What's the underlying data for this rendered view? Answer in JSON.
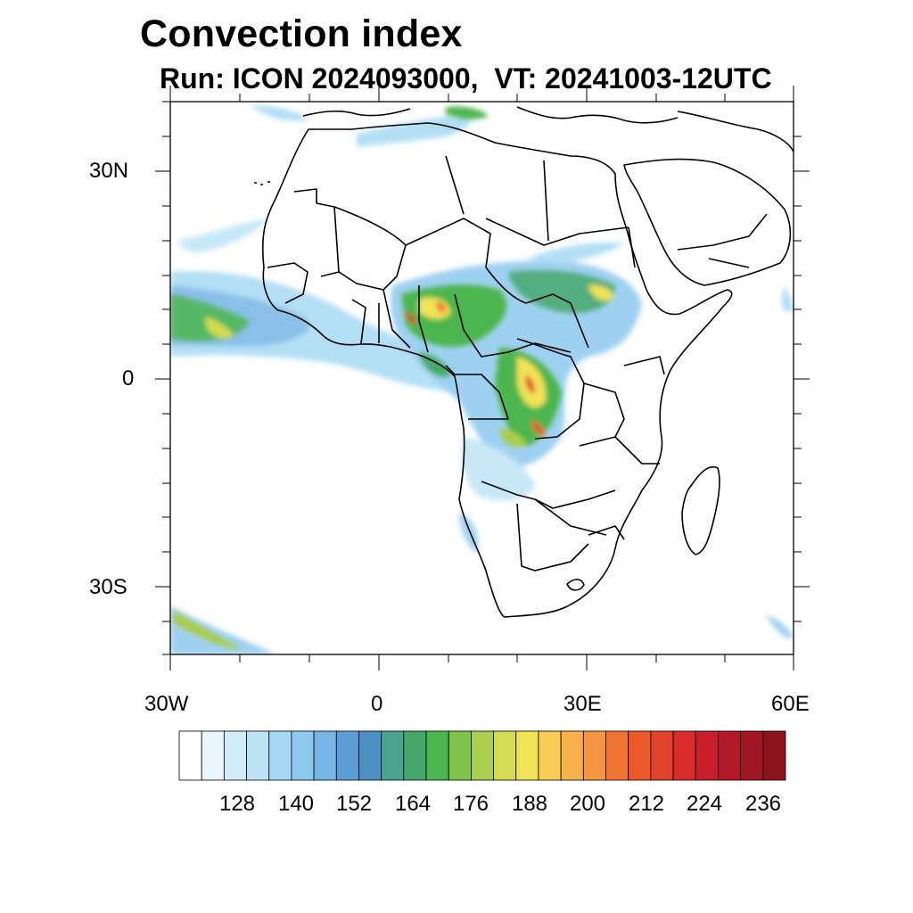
{
  "title": "Convection index",
  "subtitle": "Run: ICON 2024093000,  VT: 20241003-12UTC",
  "axes": {
    "lat_labels": [
      "30N",
      "0",
      "30S"
    ],
    "lon_labels": [
      "30W",
      "0",
      "30E",
      "60E"
    ]
  },
  "colorbar": {
    "labels": [
      "128",
      "140",
      "152",
      "164",
      "176",
      "188",
      "200",
      "212",
      "224",
      "236"
    ],
    "colors": [
      "#ffffff",
      "#eaf6fd",
      "#d3ecf9",
      "#bde4f6",
      "#a6daf4",
      "#8ec9ef",
      "#76b5e5",
      "#5c9fd6",
      "#4c90c4",
      "#49a38f",
      "#45a86a",
      "#4cb64e",
      "#7ec14a",
      "#a9cd4c",
      "#d3dc50",
      "#f1e356",
      "#f8cc55",
      "#f7b04a",
      "#f59540",
      "#f27434",
      "#ec5a2a",
      "#e2412a",
      "#d92b2a",
      "#c91f2c",
      "#b31a29",
      "#a01723",
      "#8b141c"
    ]
  }
}
